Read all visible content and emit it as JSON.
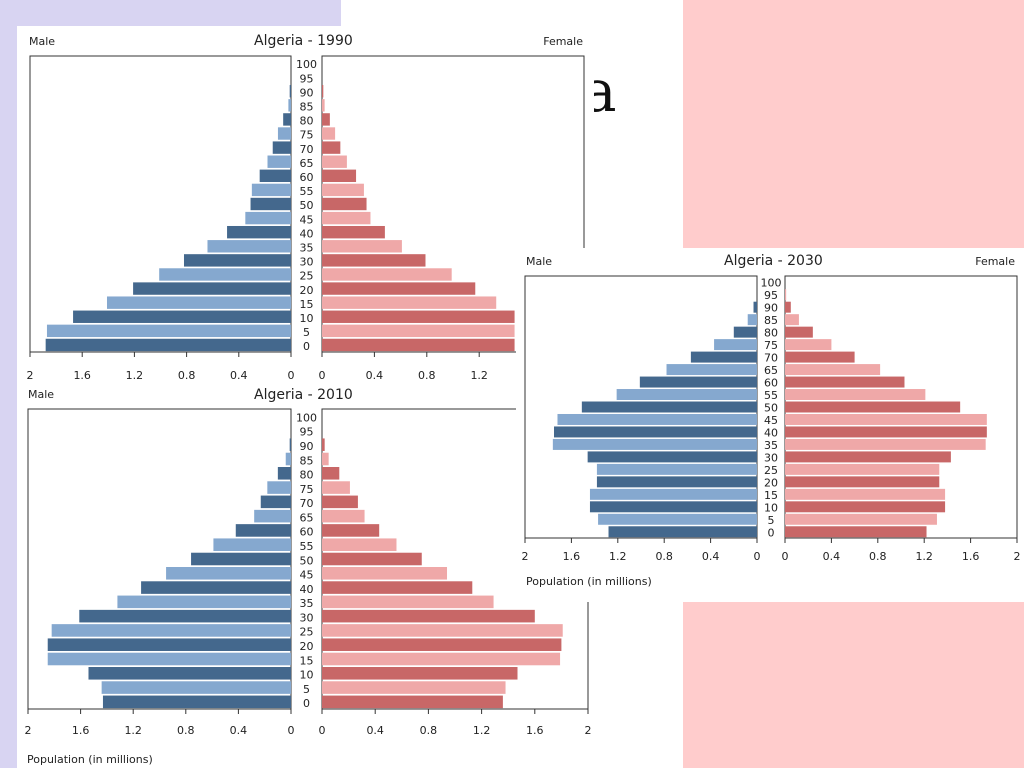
{
  "slide": {
    "background_colors": {
      "lavender": "#d8d4f2",
      "pink": "#ffcccc"
    },
    "title_fragment": "a"
  },
  "chart_data": [
    {
      "type": "bar",
      "subtype": "population-pyramid",
      "title": "Algeria - 1990",
      "left_label": "Male",
      "right_label": "Female",
      "xlabel": "",
      "xlim": [
        0,
        2
      ],
      "x_ticks": [
        "2",
        "1.6",
        "1.2",
        "0.8",
        "0.4",
        "0"
      ],
      "x_ticks_right": [
        "0",
        "0.4",
        "0.8",
        "1.2"
      ],
      "categories": [
        "0",
        "5",
        "10",
        "15",
        "20",
        "25",
        "30",
        "35",
        "40",
        "45",
        "50",
        "55",
        "60",
        "65",
        "70",
        "75",
        "80",
        "85",
        "90",
        "95",
        "100"
      ],
      "series": [
        {
          "name": "Male",
          "values": [
            1.88,
            1.87,
            1.67,
            1.41,
            1.21,
            1.01,
            0.82,
            0.64,
            0.49,
            0.35,
            0.31,
            0.3,
            0.24,
            0.18,
            0.14,
            0.1,
            0.06,
            0.02,
            0.01,
            0.0,
            0.0
          ]
        },
        {
          "name": "Female",
          "values": [
            1.47,
            1.47,
            1.47,
            1.33,
            1.17,
            0.99,
            0.79,
            0.61,
            0.48,
            0.37,
            0.34,
            0.32,
            0.26,
            0.19,
            0.14,
            0.1,
            0.06,
            0.02,
            0.01,
            0.0,
            0.0
          ]
        }
      ],
      "colors": {
        "male_dark": "#44688d",
        "male_light": "#85a8cf",
        "female_dark": "#c86767",
        "female_light": "#efa8a8"
      }
    },
    {
      "type": "bar",
      "subtype": "population-pyramid",
      "title": "Algeria - 2010",
      "left_label": "Male",
      "right_label": "",
      "xlabel": "Population (in millions)",
      "xlim": [
        0,
        2
      ],
      "x_ticks": [
        "2",
        "1.6",
        "1.2",
        "0.8",
        "0.4",
        "0"
      ],
      "x_ticks_right": [
        "0",
        "0.4",
        "0.8",
        "1.2",
        "1.6",
        "2"
      ],
      "categories": [
        "0",
        "5",
        "10",
        "15",
        "20",
        "25",
        "30",
        "35",
        "40",
        "45",
        "50",
        "55",
        "60",
        "65",
        "70",
        "75",
        "80",
        "85",
        "90",
        "95",
        "100"
      ],
      "series": [
        {
          "name": "Male",
          "values": [
            1.43,
            1.44,
            1.54,
            1.85,
            1.85,
            1.82,
            1.61,
            1.32,
            1.14,
            0.95,
            0.76,
            0.59,
            0.42,
            0.28,
            0.23,
            0.18,
            0.1,
            0.04,
            0.01,
            0.0,
            0.0
          ]
        },
        {
          "name": "Female",
          "values": [
            1.36,
            1.38,
            1.47,
            1.79,
            1.8,
            1.81,
            1.6,
            1.29,
            1.13,
            0.94,
            0.75,
            0.56,
            0.43,
            0.32,
            0.27,
            0.21,
            0.13,
            0.05,
            0.02,
            0.0,
            0.0
          ]
        }
      ],
      "colors": {
        "male_dark": "#44688d",
        "male_light": "#85a8cf",
        "female_dark": "#c86767",
        "female_light": "#efa8a8"
      }
    },
    {
      "type": "bar",
      "subtype": "population-pyramid",
      "title": "Algeria - 2030",
      "left_label": "Male",
      "right_label": "Female",
      "xlabel": "Population (in millions)",
      "xlim": [
        0,
        2
      ],
      "x_ticks": [
        "2",
        "1.6",
        "1.2",
        "0.8",
        "0.4",
        "0"
      ],
      "x_ticks_right": [
        "0",
        "0.4",
        "0.8",
        "1.2",
        "1.6",
        "2"
      ],
      "categories": [
        "0",
        "5",
        "10",
        "15",
        "20",
        "25",
        "30",
        "35",
        "40",
        "45",
        "50",
        "55",
        "60",
        "65",
        "70",
        "75",
        "80",
        "85",
        "90",
        "95",
        "100"
      ],
      "series": [
        {
          "name": "Male",
          "values": [
            1.28,
            1.37,
            1.44,
            1.44,
            1.38,
            1.38,
            1.46,
            1.76,
            1.75,
            1.72,
            1.51,
            1.21,
            1.01,
            0.78,
            0.57,
            0.37,
            0.2,
            0.08,
            0.03,
            0.0,
            0.0
          ]
        },
        {
          "name": "Female",
          "values": [
            1.22,
            1.31,
            1.38,
            1.38,
            1.33,
            1.33,
            1.43,
            1.73,
            1.74,
            1.74,
            1.51,
            1.21,
            1.03,
            0.82,
            0.6,
            0.4,
            0.24,
            0.12,
            0.05,
            0.01,
            0.0
          ]
        }
      ],
      "colors": {
        "male_dark": "#44688d",
        "male_light": "#85a8cf",
        "female_dark": "#c86767",
        "female_light": "#efa8a8"
      }
    }
  ]
}
